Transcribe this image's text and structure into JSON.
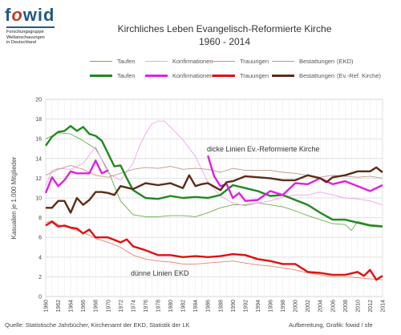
{
  "logo": {
    "brand": "fowid",
    "subtitle_lines": [
      "Forschungsgruppe",
      "Weltanschauungen",
      "in Deutschland"
    ]
  },
  "header": {
    "title_line1": "Kirchliches Leben Evangelisch-Reformierte Kirche",
    "title_line2": "1960 - 2014"
  },
  "legend": {
    "ekd_label": "(EKD)",
    "ref_label": "(Ev.-Ref. Kirche)",
    "entries": [
      "Taufen",
      "Konfirmationen",
      "Trauungen",
      "Bestattungen"
    ]
  },
  "annotations": {
    "thick_note": "dicke Linien Ev.-Reformierte Kirche",
    "thin_note": "dünne Linien EKD"
  },
  "footer": {
    "source": "Quelle: Statistische Jahrbücher, Kirchenamt der EKD, Statistik der LK",
    "credit": "Aufbereitung, Grafik: fowid / sfe"
  },
  "chart_data": {
    "type": "line",
    "title": "Kirchliches Leben Evangelisch-Reformierte Kirche 1960 - 2014",
    "xlabel": "",
    "ylabel": "Kasualien je 1.000 Mitglieder",
    "xlim": [
      1960,
      2014
    ],
    "ylim": [
      0,
      20
    ],
    "yticks": [
      0,
      2,
      4,
      6,
      8,
      10,
      12,
      14,
      16,
      18,
      20
    ],
    "xticks": [
      1960,
      1962,
      1964,
      1966,
      1968,
      1970,
      1972,
      1974,
      1976,
      1978,
      1980,
      1982,
      1984,
      1986,
      1988,
      1990,
      1992,
      1994,
      1996,
      1998,
      2000,
      2002,
      2004,
      2006,
      2008,
      2010,
      2012,
      2014
    ],
    "grid": true,
    "legend_position": "top",
    "series": [
      {
        "name": "Taufen",
        "group": "EKD",
        "color": "#6ab04c",
        "thick": false,
        "x": [
          1960,
          1962,
          1964,
          1966,
          1968,
          1970,
          1971,
          1972,
          1974,
          1976,
          1978,
          1980,
          1982,
          1984,
          1986,
          1988,
          1990,
          1992,
          1994,
          1996,
          1998,
          2000,
          2002,
          2004,
          2006,
          2008,
          2009,
          2010,
          2012,
          2014
        ],
        "y": [
          16.0,
          16.6,
          16.5,
          15.8,
          15.0,
          12.8,
          11.2,
          9.7,
          8.3,
          8.1,
          8.1,
          8.2,
          8.2,
          8.1,
          8.5,
          9.0,
          9.3,
          9.3,
          9.5,
          9.3,
          9.1,
          8.7,
          8.2,
          7.8,
          7.4,
          7.3,
          6.7,
          7.6,
          7.3,
          7.2
        ]
      },
      {
        "name": "Konfirmationen",
        "group": "EKD",
        "color": "#f2a2f0",
        "thick": false,
        "x": [
          1960,
          1961,
          1962,
          1964,
          1966,
          1968,
          1970,
          1972,
          1974,
          1975,
          1976,
          1977,
          1978,
          1979,
          1980,
          1982,
          1984,
          1986,
          1988,
          1990,
          1992,
          1994,
          1996,
          1998,
          2000,
          2002,
          2004,
          2006,
          2008,
          2010,
          2012,
          2014
        ],
        "y": [
          11.2,
          12.8,
          13.0,
          12.9,
          13.5,
          15.2,
          12.5,
          11.8,
          13.5,
          15.2,
          16.5,
          17.5,
          17.8,
          17.8,
          17.2,
          15.9,
          14.2,
          11.6,
          10.2,
          9.5,
          9.2,
          9.5,
          9.7,
          10.1,
          10.3,
          10.3,
          10.6,
          10.3,
          10.0,
          9.9,
          9.7,
          9.3
        ]
      },
      {
        "name": "Trauungen",
        "group": "EKD",
        "color": "#f08070",
        "thick": false,
        "x": [
          1960,
          1961,
          1962,
          1964,
          1966,
          1968,
          1970,
          1972,
          1974,
          1976,
          1978,
          1980,
          1982,
          1984,
          1986,
          1988,
          1990,
          1992,
          1994,
          1996,
          1998,
          2000,
          2002,
          2004,
          2006,
          2008,
          2010,
          2012,
          2014
        ],
        "y": [
          7.5,
          7.7,
          7.3,
          6.9,
          6.5,
          5.9,
          5.5,
          5.0,
          4.2,
          3.8,
          3.6,
          3.5,
          3.3,
          3.3,
          3.4,
          3.5,
          3.6,
          3.4,
          3.2,
          3.1,
          2.9,
          2.7,
          2.4,
          2.2,
          2.0,
          2.0,
          1.9,
          1.8,
          1.7
        ]
      },
      {
        "name": "Bestattungen",
        "group": "EKD",
        "color": "#b89a8a",
        "thick": false,
        "x": [
          1960,
          1962,
          1964,
          1966,
          1968,
          1970,
          1972,
          1974,
          1976,
          1978,
          1980,
          1982,
          1984,
          1986,
          1988,
          1990,
          1992,
          1994,
          1996,
          1998,
          2000,
          2002,
          2004,
          2006,
          2008,
          2010,
          2012,
          2014
        ],
        "y": [
          12.3,
          12.9,
          13.3,
          12.9,
          12.3,
          12.1,
          12.5,
          12.9,
          13.1,
          13.0,
          13.2,
          12.9,
          13.0,
          12.9,
          12.6,
          13.0,
          12.8,
          12.8,
          12.8,
          12.6,
          12.5,
          12.3,
          12.1,
          12.3,
          12.2,
          12.1,
          12.2,
          12.0
        ]
      },
      {
        "name": "Taufen",
        "group": "Ev.-Ref. Kirche",
        "color": "#1e8a1e",
        "thick": true,
        "x": [
          1960,
          1961,
          1962,
          1963,
          1964,
          1965,
          1966,
          1967,
          1968,
          1969,
          1970,
          1971,
          1972,
          1973,
          1974,
          1976,
          1978,
          1980,
          1982,
          1984,
          1986,
          1988,
          1990,
          1992,
          1994,
          1996,
          1998,
          2000,
          2002,
          2004,
          2006,
          2008,
          2010,
          2012,
          2014
        ],
        "y": [
          15.3,
          16.2,
          16.7,
          16.8,
          17.3,
          16.8,
          17.2,
          16.5,
          16.3,
          15.8,
          14.5,
          13.2,
          13.3,
          12.0,
          10.8,
          10.0,
          9.9,
          10.2,
          10.0,
          10.1,
          10.0,
          10.3,
          11.3,
          11.0,
          10.7,
          10.2,
          10.3,
          9.8,
          9.3,
          8.5,
          7.8,
          7.8,
          7.5,
          7.2,
          7.1
        ]
      },
      {
        "name": "Konfirmationen",
        "group": "Ev.-Ref. Kirche",
        "color": "#e020e0",
        "thick": true,
        "x": [
          1960,
          1961,
          1962,
          1963,
          1964,
          1965,
          1966,
          1967,
          1968,
          1969,
          1970,
          1986,
          1987,
          1988,
          1989,
          1990,
          1991,
          1992,
          1994,
          1996,
          1998,
          2000,
          2002,
          2004,
          2006,
          2008,
          2010,
          2012,
          2014
        ],
        "y": [
          10.5,
          12.1,
          11.2,
          11.8,
          12.7,
          12.5,
          12.5,
          12.5,
          13.8,
          12.5,
          12.8,
          14.3,
          12.2,
          11.2,
          11.4,
          10.0,
          10.5,
          9.7,
          9.8,
          10.7,
          10.3,
          11.5,
          11.4,
          12.0,
          11.4,
          11.7,
          11.2,
          10.7,
          11.3
        ]
      },
      {
        "name": "Trauungen",
        "group": "Ev.-Ref. Kirche",
        "color": "#e01010",
        "thick": true,
        "x": [
          1960,
          1961,
          1962,
          1963,
          1964,
          1965,
          1966,
          1967,
          1968,
          1970,
          1972,
          1973,
          1974,
          1976,
          1978,
          1980,
          1982,
          1984,
          1986,
          1988,
          1990,
          1992,
          1994,
          1996,
          1998,
          2000,
          2002,
          2004,
          2006,
          2008,
          2010,
          2011,
          2012,
          2013,
          2014
        ],
        "y": [
          7.2,
          7.6,
          7.1,
          7.2,
          7.0,
          6.9,
          6.4,
          6.8,
          6.0,
          6.0,
          5.5,
          5.8,
          5.1,
          4.7,
          4.2,
          4.2,
          4.0,
          4.1,
          4.0,
          4.1,
          4.3,
          4.2,
          3.8,
          3.6,
          3.3,
          3.3,
          2.5,
          2.4,
          2.2,
          2.2,
          2.5,
          2.1,
          2.7,
          1.7,
          2.1
        ]
      },
      {
        "name": "Bestattungen",
        "group": "Ev.-Ref. Kirche",
        "color": "#5a2d16",
        "thick": true,
        "x": [
          1960,
          1961,
          1962,
          1963,
          1964,
          1965,
          1966,
          1967,
          1968,
          1969,
          1970,
          1971,
          1972,
          1974,
          1976,
          1978,
          1980,
          1982,
          1983,
          1984,
          1985,
          1986,
          1988,
          1989,
          1990,
          1992,
          1994,
          1996,
          1998,
          2000,
          2002,
          2004,
          2005,
          2006,
          2008,
          2010,
          2012,
          2013,
          2014
        ],
        "y": [
          9.0,
          9.0,
          9.7,
          9.7,
          8.5,
          10.0,
          9.3,
          9.8,
          10.6,
          10.6,
          10.5,
          10.3,
          11.2,
          10.9,
          11.5,
          11.3,
          11.5,
          11.0,
          12.3,
          11.2,
          11.4,
          11.5,
          10.8,
          11.6,
          11.7,
          12.2,
          12.1,
          12.0,
          11.8,
          11.8,
          12.3,
          12.0,
          11.6,
          12.1,
          12.3,
          12.7,
          12.7,
          13.1,
          12.6
        ]
      }
    ]
  }
}
